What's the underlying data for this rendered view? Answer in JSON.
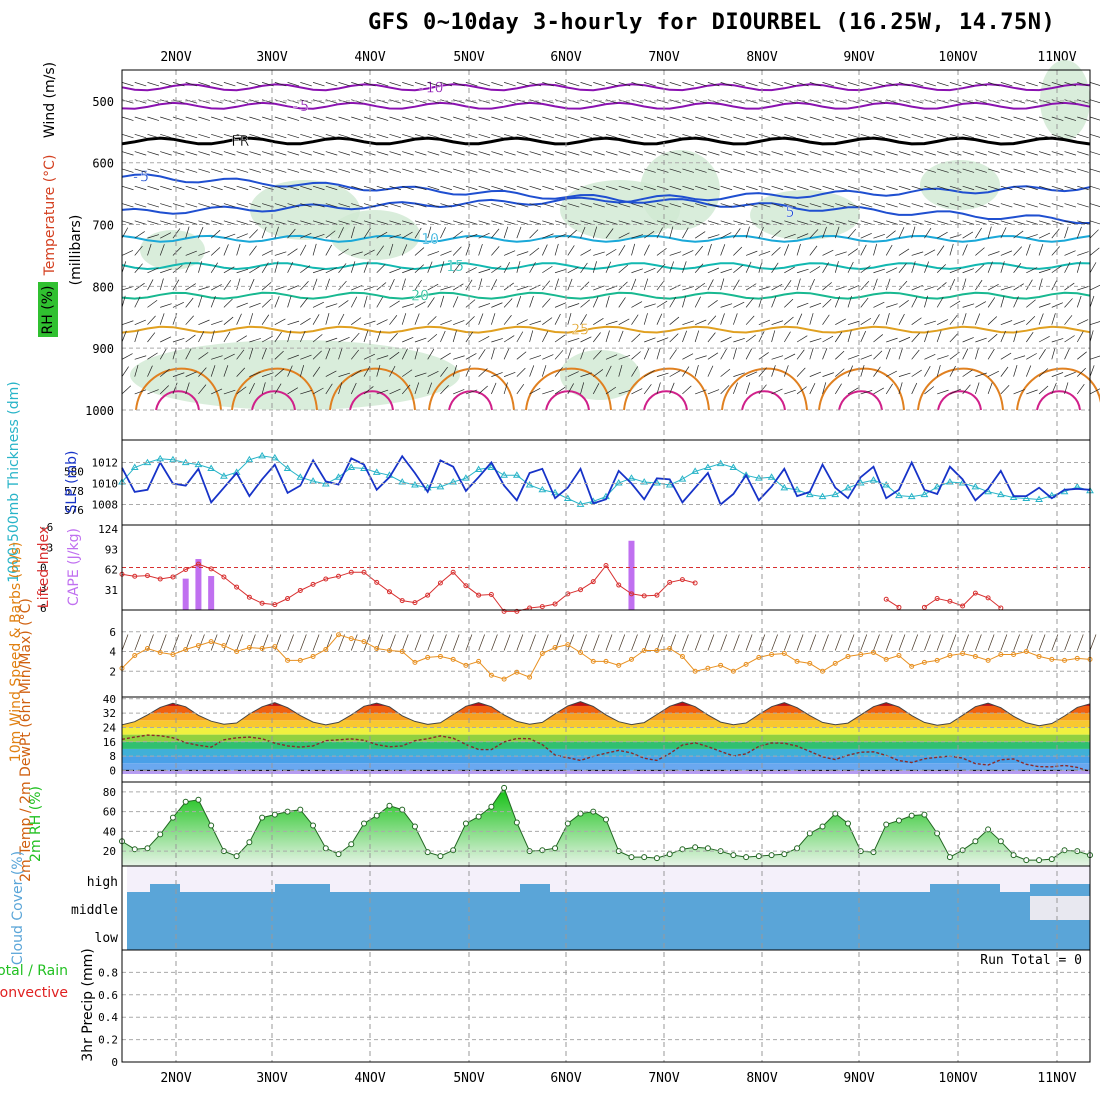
{
  "title": "GFS 0~10day 3-hourly for DIOURBEL (16.25W, 14.75N)",
  "colors": {
    "purple": "#8a12b0",
    "black": "#000000",
    "blue": "#1f4fd0",
    "cyan": "#1aa8d8",
    "teal": "#12b8b0",
    "green_teal": "#18b890",
    "orange": "#e0a020",
    "rh_green": "#cfe9d2",
    "slp": "#1733c8",
    "thickness": "#28b4c8",
    "lifted": "#d83030",
    "cape": "#c070f0",
    "wind10": "#e89020",
    "cloud": "#5aa5d8",
    "rh2m": "#22c022"
  },
  "chart_data": [
    {
      "type": "line",
      "panel": "upper-air",
      "title": "GFS 0~10day 3-hourly for DIOURBEL (16.25W, 14.75N)",
      "ylabels": [
        "Wind (m/s)",
        "Temperature (°C)",
        "RH (%)",
        "(millibars)"
      ],
      "yticks": [
        500,
        600,
        700,
        800,
        900,
        1000
      ],
      "ylim": [
        450,
        1000
      ],
      "x_tick_labels": [
        "2NOV",
        "3NOV",
        "4NOV",
        "5NOV",
        "6NOV",
        "7NOV",
        "8NOV",
        "9NOV",
        "10NOV",
        "11NOV"
      ],
      "isotherms": [
        {
          "label": "-10",
          "pressure": 478
        },
        {
          "label": "-5",
          "pressure": 508
        },
        {
          "label": "FR",
          "pressure": 565
        },
        {
          "label": "-5",
          "pressure": 622
        },
        {
          "label": "5",
          "pressure": 680
        },
        {
          "label": "10",
          "pressure": 723
        },
        {
          "label": "15",
          "pressure": 767
        },
        {
          "label": "20",
          "pressure": 815
        },
        {
          "label": "25",
          "pressure": 870
        }
      ],
      "rh_contour_labels": [
        "10",
        "30"
      ]
    },
    {
      "type": "line",
      "panel": "slp-thickness",
      "ylabel_left": "1000-500mb Thickness (dm)",
      "ylabel_right": "SLP (mb)",
      "yticks_left": [
        576,
        578,
        580
      ],
      "yticks_right": [
        1008,
        1010,
        1012
      ],
      "series": [
        {
          "name": "SLP",
          "values": [
            1011.5,
            1009.2,
            1009.4,
            1012.0,
            1010.0,
            1009.8,
            1011.4,
            1008.2,
            1009.6,
            1011.0,
            1008.8,
            1010.4,
            1011.8,
            1009.1,
            1009.8,
            1012.2,
            1010.2,
            1009.9,
            1012.4,
            1011.8,
            1009.4,
            1010.6,
            1012.6,
            1011.0,
            1009.2,
            1012.2,
            1011.6,
            1009.3,
            1010.6,
            1012.0,
            1009.8,
            1008.4,
            1011.0,
            1011.4,
            1008.6,
            1009.6,
            1011.4,
            1008.1,
            1008.5,
            1011.2,
            1010.0,
            1008.5,
            1010.5,
            1010.4,
            1008.2,
            1009.6,
            1011.0,
            1008.0,
            1009.0,
            1010.8,
            1008.4,
            1009.7,
            1011.4,
            1008.8,
            1009.2,
            1011.8,
            1009.6,
            1008.6,
            1010.6,
            1011.6,
            1008.6,
            1009.4,
            1012.0,
            1009.4,
            1009.0,
            1011.6,
            1010.4,
            1008.4,
            1009.5,
            1011.2,
            1008.8,
            1008.8,
            1009.6,
            1008.6,
            1009.4,
            1009.5,
            1009.4
          ]
        },
        {
          "name": "Thickness",
          "values": [
            578.9,
            580.4,
            580.9,
            581.3,
            581.2,
            580.9,
            580.7,
            580.3,
            579.5,
            579.9,
            581.2,
            581.6,
            581.4,
            580.3,
            579.4,
            579.0,
            578.7,
            579.4,
            580.4,
            580.3,
            579.9,
            579.6,
            578.9,
            578.6,
            578.3,
            578.4,
            578.9,
            579.3,
            580.2,
            580.4,
            579.6,
            579.6,
            578.6,
            578.1,
            577.8,
            577.2,
            576.6,
            576.9,
            577.4,
            578.8,
            579.3,
            578.9,
            578.8,
            578.6,
            579.2,
            580.0,
            580.4,
            580.8,
            580.4,
            579.6,
            579.3,
            579.4,
            578.3,
            578.1,
            577.6,
            577.4,
            577.6,
            578.3,
            578.8,
            579.1,
            578.6,
            577.5,
            577.4,
            577.6,
            578.4,
            578.9,
            578.8,
            578.4,
            577.9,
            577.6,
            577.3,
            577.2,
            577.1,
            577.5,
            577.9,
            578.4,
            578.0
          ]
        }
      ]
    },
    {
      "type": "bar",
      "panel": "lifted-cape",
      "ylabel_left": "Lifted Index",
      "ylabel_right": "CAPE (J/kg)",
      "yticks_left": [
        6,
        3,
        0,
        -3,
        -6
      ],
      "yticks_right": [
        31,
        62,
        93,
        124
      ],
      "lifted_index": [
        1.0,
        1.3,
        1.2,
        1.7,
        1.4,
        0.3,
        -0.5,
        0.2,
        1.4,
        2.9,
        4.4,
        5.3,
        5.5,
        4.6,
        3.4,
        2.5,
        1.7,
        1.3,
        0.7,
        0.7,
        2.2,
        3.6,
        4.9,
        5.2,
        4.1,
        2.3,
        0.7,
        2.7,
        4.1,
        4.0,
        6.5,
        6.5,
        6.0,
        5.8,
        5.4,
        3.9,
        3.3,
        2.1,
        -0.3,
        2.6,
        3.9,
        4.2,
        4.1,
        2.2,
        1.8,
        2.3,
        null,
        null,
        null,
        null,
        null,
        null,
        null,
        null,
        null,
        null,
        null,
        null,
        null,
        null,
        4.7,
        5.9,
        null,
        5.9,
        4.6,
        5.0,
        5.7,
        3.8,
        4.5,
        6.0,
        null,
        null,
        null,
        null,
        null,
        null,
        null
      ],
      "cape": [
        0,
        0,
        0,
        0,
        0,
        48,
        78,
        52,
        0,
        0,
        0,
        0,
        0,
        0,
        0,
        0,
        0,
        0,
        0,
        0,
        0,
        0,
        0,
        0,
        0,
        0,
        0,
        0,
        0,
        0,
        0,
        0,
        0,
        0,
        0,
        0,
        0,
        0,
        0,
        0,
        106,
        0,
        0,
        0,
        0,
        0,
        0,
        0,
        0,
        0,
        0,
        0,
        0,
        0,
        0,
        0,
        0,
        0,
        0,
        0,
        0,
        0,
        0,
        0,
        0,
        0,
        0,
        0,
        0,
        0,
        0,
        0,
        0,
        0,
        0,
        0,
        0
      ]
    },
    {
      "type": "line",
      "panel": "wind10",
      "ylabel": "10m Wind Speed & Barbs (m/s)",
      "yticks": [
        2,
        4,
        6
      ],
      "ylim": [
        0,
        8
      ],
      "series": [
        {
          "name": "10m Wind Speed",
          "values": [
            2.3,
            3.6,
            4.3,
            3.9,
            3.7,
            4.2,
            4.6,
            5.0,
            4.6,
            4.0,
            4.4,
            4.3,
            4.5,
            3.1,
            3.1,
            3.5,
            4.2,
            5.7,
            5.3,
            5.0,
            4.3,
            4.1,
            4.0,
            2.9,
            3.4,
            3.5,
            3.2,
            2.6,
            3.0,
            1.6,
            1.2,
            1.9,
            1.4,
            3.8,
            4.4,
            4.7,
            3.9,
            3.0,
            3.0,
            2.6,
            3.2,
            4.1,
            4.1,
            4.3,
            3.5,
            2.0,
            2.3,
            2.6,
            2.0,
            2.7,
            3.4,
            3.7,
            3.8,
            3.0,
            2.8,
            2.0,
            2.8,
            3.5,
            3.7,
            3.9,
            3.2,
            3.6,
            2.5,
            2.9,
            3.1,
            3.6,
            3.8,
            3.5,
            3.1,
            3.7,
            3.7,
            4.0,
            3.5,
            3.2,
            3.1,
            3.3,
            3.2
          ]
        }
      ]
    },
    {
      "type": "area",
      "panel": "temp2m",
      "ylabel": "2m Temp / 2m DewPt (6hr Min/Max) (°C)",
      "yticks": [
        0,
        8,
        16,
        24,
        32,
        40
      ],
      "ylim": [
        -2,
        41
      ],
      "series": [
        {
          "name": "2m Temp",
          "values": [
            25.5,
            27.2,
            31.0,
            35.2,
            37.5,
            35.5,
            30.8,
            27.5,
            25.8,
            26.5,
            31.5,
            35.5,
            37.8,
            35.0,
            30.6,
            27.0,
            25.4,
            26.8,
            31.0,
            35.8,
            37.6,
            35.5,
            30.5,
            27.4,
            25.7,
            26.6,
            31.2,
            35.8,
            37.8,
            35.6,
            31.0,
            27.4,
            25.8,
            26.8,
            31.6,
            36.0,
            38.4,
            35.7,
            31.0,
            27.2,
            25.6,
            26.7,
            31.2,
            35.8,
            38.2,
            35.6,
            31.0,
            27.0,
            25.5,
            26.5,
            31.2,
            35.6,
            37.8,
            35.0,
            30.6,
            26.8,
            25.5,
            26.4,
            31.0,
            35.6,
            37.8,
            35.4,
            30.6,
            26.8,
            25.2,
            26.2,
            30.8,
            35.6,
            37.6,
            35.0,
            30.2,
            26.6,
            25.0,
            26.2,
            30.4,
            35.2,
            37.2
          ]
        },
        {
          "name": "2m DewPt",
          "values": [
            17.4,
            18.6,
            19.7,
            19.4,
            18.2,
            15.5,
            14.0,
            13.0,
            17.1,
            18.2,
            18.6,
            17.7,
            15.2,
            13.7,
            13.0,
            13.7,
            16.6,
            17.1,
            17.6,
            16.8,
            14.4,
            13.2,
            13.7,
            16.6,
            17.7,
            19.3,
            18.0,
            14.5,
            11.7,
            11.6,
            15.9,
            17.8,
            17.7,
            14.4,
            8.6,
            7.1,
            5.6,
            7.9,
            9.6,
            11.2,
            9.7,
            6.8,
            5.6,
            9.4,
            14.2,
            15.4,
            13.3,
            10.6,
            8.1,
            9.2,
            13.4,
            15.3,
            15.2,
            13.6,
            10.6,
            7.6,
            6.1,
            8.5,
            10.2,
            10.4,
            8.4,
            5.5,
            4.4,
            6.5,
            7.3,
            8.0,
            6.9,
            3.8,
            3.0,
            6.0,
            6.4,
            3.4,
            2.1,
            2.0,
            2.8,
            1.7,
            -0.6
          ]
        }
      ]
    },
    {
      "type": "area",
      "panel": "rh2m",
      "ylabel": "2m RH (%)",
      "yticks": [
        20,
        40,
        60,
        80
      ],
      "ylim": [
        5,
        90
      ],
      "series": [
        {
          "name": "2m RH",
          "values": [
            30,
            22,
            23,
            37,
            54,
            70,
            72,
            46,
            20,
            15,
            29,
            54,
            57,
            60,
            62,
            46,
            23,
            17,
            27,
            48,
            56,
            66,
            62,
            45,
            19,
            15,
            21,
            48,
            55,
            65,
            84,
            49,
            20,
            21,
            23,
            48,
            58,
            60,
            52,
            20,
            14,
            14,
            13,
            17,
            22,
            24,
            23,
            20,
            16,
            14,
            15,
            16,
            17,
            23,
            38,
            45,
            58,
            48,
            20,
            19,
            47,
            51,
            56,
            57,
            38,
            14,
            21,
            30,
            42,
            30,
            16,
            11,
            11,
            12,
            21,
            20,
            16
          ]
        }
      ]
    },
    {
      "type": "heatmap",
      "panel": "cloud",
      "ylabel": "Cloud Cover (%)",
      "row_labels": [
        "high",
        "middle",
        "low"
      ]
    },
    {
      "type": "bar",
      "panel": "precip",
      "ylabel_left": "Total / Rain",
      "ylabel_left2": "Convective",
      "ylabel": "3hr Precip (mm)",
      "yticks": [
        "0",
        "0.2",
        "0.4",
        "0.6",
        "0.8"
      ],
      "ylim": [
        0,
        1
      ],
      "run_total": "Run Total = 0",
      "values": [],
      "x_tick_labels": [
        "2NOV",
        "3NOV",
        "4NOV",
        "5NOV",
        "6NOV",
        "7NOV",
        "8NOV",
        "9NOV",
        "10NOV",
        "11NOV"
      ]
    }
  ]
}
